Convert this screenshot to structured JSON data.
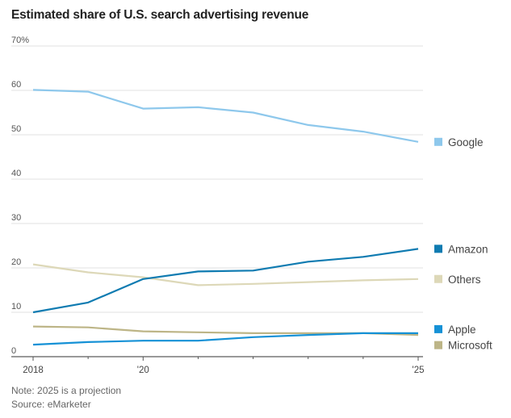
{
  "chart_data": {
    "type": "line",
    "title": "Estimated share of U.S. search advertising revenue",
    "xlabel": "",
    "ylabel": "",
    "x": [
      2018,
      2019,
      2020,
      2021,
      2022,
      2023,
      2024,
      2025
    ],
    "x_tick_labels": [
      {
        "x": 2018,
        "label": "2018"
      },
      {
        "x": 2020,
        "label": "'20"
      },
      {
        "x": 2025,
        "label": "'25"
      }
    ],
    "y_ticks": [
      {
        "value": 0,
        "label": "0"
      },
      {
        "value": 10,
        "label": "10"
      },
      {
        "value": 20,
        "label": "20"
      },
      {
        "value": 30,
        "label": "30"
      },
      {
        "value": 40,
        "label": "40"
      },
      {
        "value": 50,
        "label": "50"
      },
      {
        "value": 60,
        "label": "60"
      },
      {
        "value": 70,
        "label": "70%"
      }
    ],
    "ylim": [
      0,
      70
    ],
    "xlim": [
      2018,
      2025
    ],
    "grid": true,
    "legend_placement": "right, labels aligned to line ends",
    "series": [
      {
        "name": "Google",
        "color": "#8ec8ec",
        "values": [
          60.1,
          59.7,
          55.9,
          56.2,
          55.0,
          52.2,
          50.7,
          48.4
        ]
      },
      {
        "name": "Amazon",
        "color": "#0f7bb1",
        "values": [
          10.0,
          12.2,
          17.5,
          19.2,
          19.4,
          21.4,
          22.5,
          24.3
        ]
      },
      {
        "name": "Others",
        "color": "#ddd8b8",
        "values": [
          20.8,
          19.0,
          17.9,
          16.1,
          16.4,
          16.8,
          17.2,
          17.5
        ]
      },
      {
        "name": "Apple",
        "color": "#1591d6",
        "values": [
          2.7,
          3.3,
          3.6,
          3.6,
          4.4,
          4.9,
          5.3,
          5.3
        ]
      },
      {
        "name": "Microsoft",
        "color": "#bdb587",
        "values": [
          6.8,
          6.6,
          5.7,
          5.5,
          5.3,
          5.3,
          5.3,
          4.9
        ]
      }
    ],
    "notes": [
      "Note: 2025 is a projection",
      "Source: eMarketer"
    ]
  }
}
